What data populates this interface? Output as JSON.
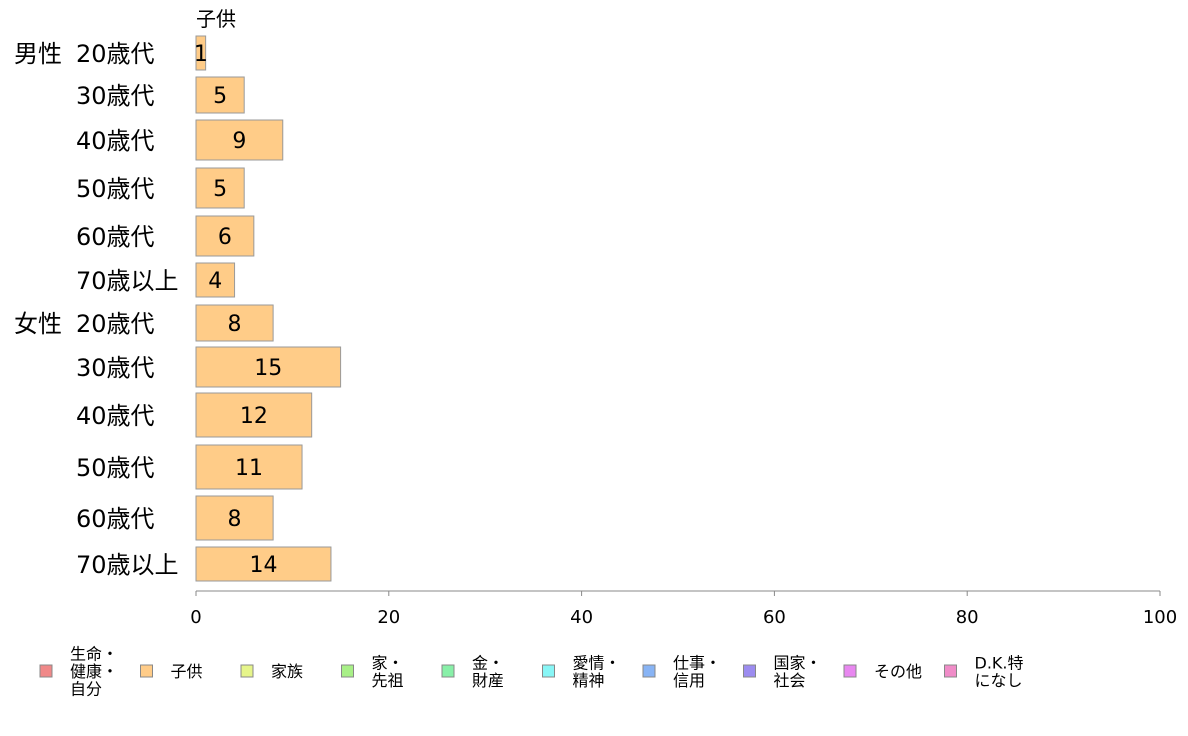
{
  "chart_data": {
    "type": "bar",
    "orientation": "horizontal",
    "series_title": "子供",
    "groups": [
      {
        "label": "男性",
        "rows": [
          {
            "label": "20歳代",
            "value": 1
          },
          {
            "label": "30歳代",
            "value": 5
          },
          {
            "label": "40歳代",
            "value": 9
          },
          {
            "label": "50歳代",
            "value": 5
          },
          {
            "label": "60歳代",
            "value": 6
          },
          {
            "label": "70歳以上",
            "value": 4
          }
        ]
      },
      {
        "label": "女性",
        "rows": [
          {
            "label": "20歳代",
            "value": 8
          },
          {
            "label": "30歳代",
            "value": 15
          },
          {
            "label": "40歳代",
            "value": 12
          },
          {
            "label": "50歳代",
            "value": 11
          },
          {
            "label": "60歳代",
            "value": 8
          },
          {
            "label": "70歳以上",
            "value": 14
          }
        ]
      }
    ],
    "xlim": [
      0,
      100
    ],
    "xticks": [
      "0",
      "20",
      "40",
      "60",
      "80",
      "100"
    ],
    "bar_color": "#ffcc88",
    "bar_stroke": "#999999",
    "legend": {
      "position": "bottom",
      "items": [
        {
          "label": [
            "生命・",
            "健康・",
            "自分"
          ],
          "color": "#f08888"
        },
        {
          "label": [
            "子供"
          ],
          "color": "#ffcc88"
        },
        {
          "label": [
            "家族"
          ],
          "color": "#e6f58a"
        },
        {
          "label": [
            "家・",
            "先祖"
          ],
          "color": "#a8f087"
        },
        {
          "label": [
            "金・",
            "財産"
          ],
          "color": "#88f0a8"
        },
        {
          "label": [
            "愛情・",
            "精神"
          ],
          "color": "#88f6f6"
        },
        {
          "label": [
            "仕事・",
            "信用"
          ],
          "color": "#88b4f5"
        },
        {
          "label": [
            "国家・",
            "社会"
          ],
          "color": "#9c8cf0"
        },
        {
          "label": [
            "その他"
          ],
          "color": "#e887f0"
        },
        {
          "label": [
            "D.K.特",
            "になし"
          ],
          "color": "#f08cc8"
        }
      ]
    }
  }
}
